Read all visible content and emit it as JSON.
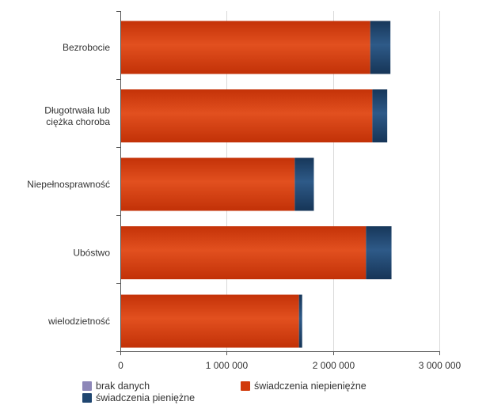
{
  "chart_data": {
    "type": "bar",
    "orientation": "horizontal",
    "stacked": true,
    "title": "",
    "xlabel": "",
    "ylabel": "",
    "categories": [
      "Bezrobocie",
      "Długotrwała lub ciężka choroba",
      "Niepełnosprawność",
      "Ubóstwo",
      "wielodzietność"
    ],
    "category_lines": [
      [
        "Bezrobocie"
      ],
      [
        "Długotrwała lub",
        "ciężka choroba"
      ],
      [
        "Niepełnosprawność"
      ],
      [
        "Ubóstwo"
      ],
      [
        "wielodzietność"
      ]
    ],
    "series": [
      {
        "name": "świadczenia niepieniężne",
        "color": "#d13a0b",
        "values": [
          2350000,
          2370000,
          1640000,
          2310000,
          1680000
        ]
      },
      {
        "name": "świadczenia pieniężne",
        "color": "#1f4670",
        "values": [
          190000,
          140000,
          180000,
          240000,
          30000
        ]
      },
      {
        "name": "brak danych",
        "color": "#8d87b8",
        "values": [
          0,
          0,
          0,
          0,
          0
        ]
      }
    ],
    "xlim": [
      0,
      3000000
    ],
    "xticks": [
      0,
      1000000,
      2000000,
      3000000
    ],
    "xtick_labels": [
      "0",
      "1 000 000",
      "2 000 000",
      "3 000 000"
    ],
    "grid": true,
    "legend_position": "bottom"
  },
  "legend": {
    "items": [
      {
        "label": "brak danych",
        "color": "#8d87b8"
      },
      {
        "label": "świadczenia niepieniężne",
        "color": "#d13a0b"
      },
      {
        "label": "świadczenia pieniężne",
        "color": "#1f4670"
      }
    ]
  }
}
